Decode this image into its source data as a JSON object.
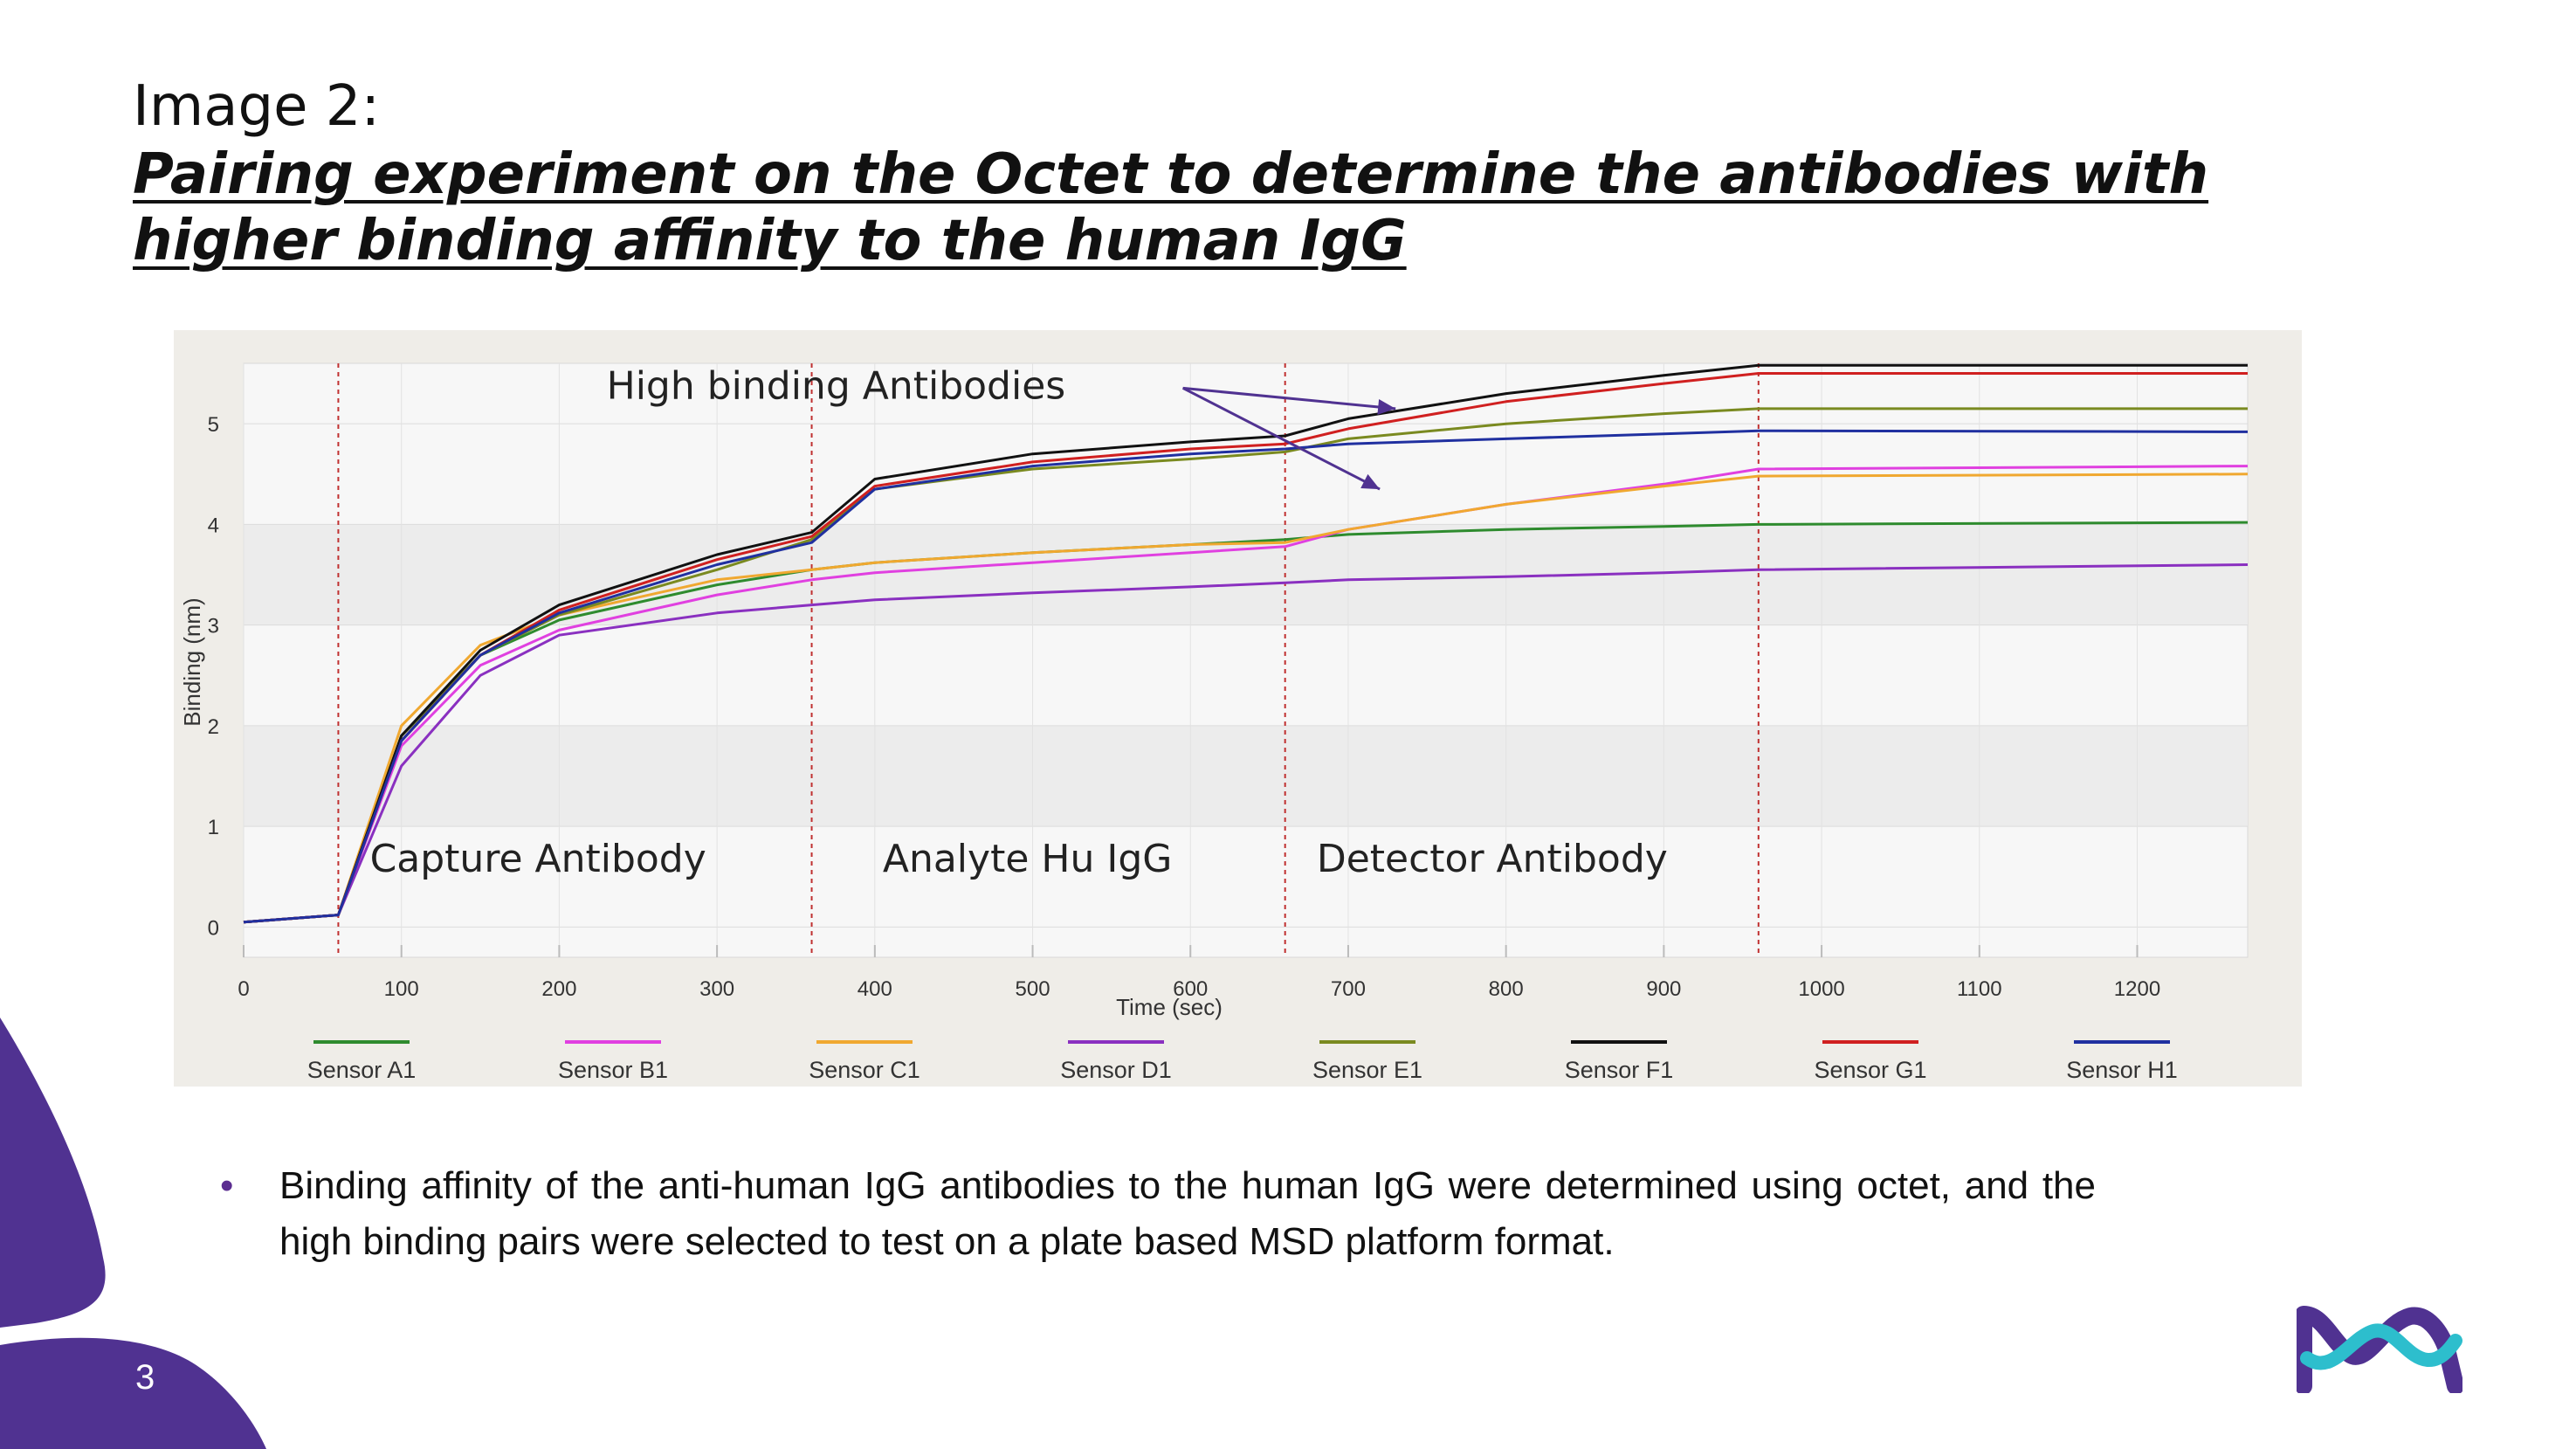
{
  "slide": {
    "title_line1": "Image 2:",
    "title_line2a": "Pairing experiment on the Octet to determine the antibodies with",
    "title_line2b": "higher binding affinity to the human IgG",
    "bullet": "Binding affinity of the anti-human IgG antibodies to the human IgG were determined using octet, and the high binding pairs were selected to test on a plate based MSD platform format.",
    "page_number": "3",
    "colors": {
      "purple": "#503291",
      "teal": "#2dbecd"
    },
    "icons": [
      "bullet-dot-icon",
      "merck-logo-icon"
    ]
  },
  "chart_data": {
    "type": "line",
    "title": "",
    "xlabel": "Time (sec)",
    "ylabel": "Binding (nm)",
    "xlim": [
      0,
      1270
    ],
    "ylim": [
      -0.3,
      5.6
    ],
    "xticks": [
      0,
      100,
      200,
      300,
      400,
      500,
      600,
      700,
      800,
      900,
      1000,
      1100,
      1200
    ],
    "yticks": [
      0,
      1,
      2,
      3,
      4,
      5
    ],
    "phase_boundaries": [
      60,
      360,
      660,
      960
    ],
    "phases": [
      {
        "label": "Capture Antibody",
        "x": 80
      },
      {
        "label": "Analyte Hu IgG",
        "x": 405
      },
      {
        "label": "Detector Antibody",
        "x": 680
      }
    ],
    "annotation": {
      "text": "High binding Antibodies",
      "x": 230,
      "y": 5.25,
      "arrow_targets": [
        [
          730,
          5.15
        ],
        [
          720,
          4.35
        ]
      ]
    },
    "series": [
      {
        "name": "Sensor A1",
        "color": "#2e8b2e",
        "x": [
          0,
          60,
          100,
          150,
          200,
          300,
          360,
          400,
          500,
          600,
          660,
          700,
          800,
          900,
          960,
          1270
        ],
        "y": [
          0.05,
          0.12,
          1.9,
          2.7,
          3.05,
          3.4,
          3.55,
          3.62,
          3.72,
          3.8,
          3.85,
          3.9,
          3.95,
          3.98,
          4.0,
          4.02
        ]
      },
      {
        "name": "Sensor B1",
        "color": "#e040e0",
        "x": [
          0,
          60,
          100,
          150,
          200,
          300,
          360,
          400,
          500,
          600,
          660,
          700,
          800,
          900,
          960,
          1270
        ],
        "y": [
          0.05,
          0.12,
          1.8,
          2.6,
          2.95,
          3.3,
          3.45,
          3.52,
          3.62,
          3.72,
          3.78,
          3.95,
          4.2,
          4.4,
          4.55,
          4.58
        ]
      },
      {
        "name": "Sensor C1",
        "color": "#f0a830",
        "x": [
          0,
          60,
          100,
          150,
          200,
          300,
          360,
          400,
          500,
          600,
          660,
          700,
          800,
          900,
          960,
          1270
        ],
        "y": [
          0.05,
          0.12,
          2.0,
          2.8,
          3.1,
          3.45,
          3.55,
          3.62,
          3.72,
          3.8,
          3.82,
          3.95,
          4.2,
          4.38,
          4.48,
          4.5
        ]
      },
      {
        "name": "Sensor D1",
        "color": "#8a30c0",
        "x": [
          0,
          60,
          100,
          150,
          200,
          300,
          360,
          400,
          500,
          600,
          660,
          700,
          800,
          900,
          960,
          1270
        ],
        "y": [
          0.05,
          0.12,
          1.6,
          2.5,
          2.9,
          3.12,
          3.2,
          3.25,
          3.32,
          3.38,
          3.42,
          3.45,
          3.48,
          3.52,
          3.55,
          3.6
        ]
      },
      {
        "name": "Sensor E1",
        "color": "#7a8a20",
        "x": [
          0,
          60,
          100,
          150,
          200,
          300,
          360,
          400,
          500,
          600,
          660,
          700,
          800,
          900,
          960,
          1270
        ],
        "y": [
          0.05,
          0.12,
          1.9,
          2.7,
          3.1,
          3.55,
          3.85,
          4.35,
          4.55,
          4.65,
          4.72,
          4.85,
          5.0,
          5.1,
          5.15,
          5.15
        ]
      },
      {
        "name": "Sensor F1",
        "color": "#111111",
        "x": [
          0,
          60,
          100,
          150,
          200,
          300,
          360,
          400,
          500,
          600,
          660,
          700,
          800,
          900,
          960,
          1270
        ],
        "y": [
          0.05,
          0.12,
          1.9,
          2.75,
          3.2,
          3.7,
          3.92,
          4.45,
          4.7,
          4.82,
          4.88,
          5.05,
          5.3,
          5.48,
          5.58,
          5.58
        ]
      },
      {
        "name": "Sensor G1",
        "color": "#d02020",
        "x": [
          0,
          60,
          100,
          150,
          200,
          300,
          360,
          400,
          500,
          600,
          660,
          700,
          800,
          900,
          960,
          1270
        ],
        "y": [
          0.05,
          0.12,
          1.85,
          2.7,
          3.15,
          3.65,
          3.88,
          4.38,
          4.62,
          4.75,
          4.8,
          4.95,
          5.22,
          5.4,
          5.5,
          5.5
        ]
      },
      {
        "name": "Sensor H1",
        "color": "#2030a0",
        "x": [
          0,
          60,
          100,
          150,
          200,
          300,
          360,
          400,
          500,
          600,
          660,
          700,
          800,
          900,
          960,
          1270
        ],
        "y": [
          0.05,
          0.12,
          1.85,
          2.7,
          3.12,
          3.6,
          3.82,
          4.35,
          4.58,
          4.7,
          4.75,
          4.8,
          4.85,
          4.9,
          4.93,
          4.92
        ]
      }
    ]
  }
}
